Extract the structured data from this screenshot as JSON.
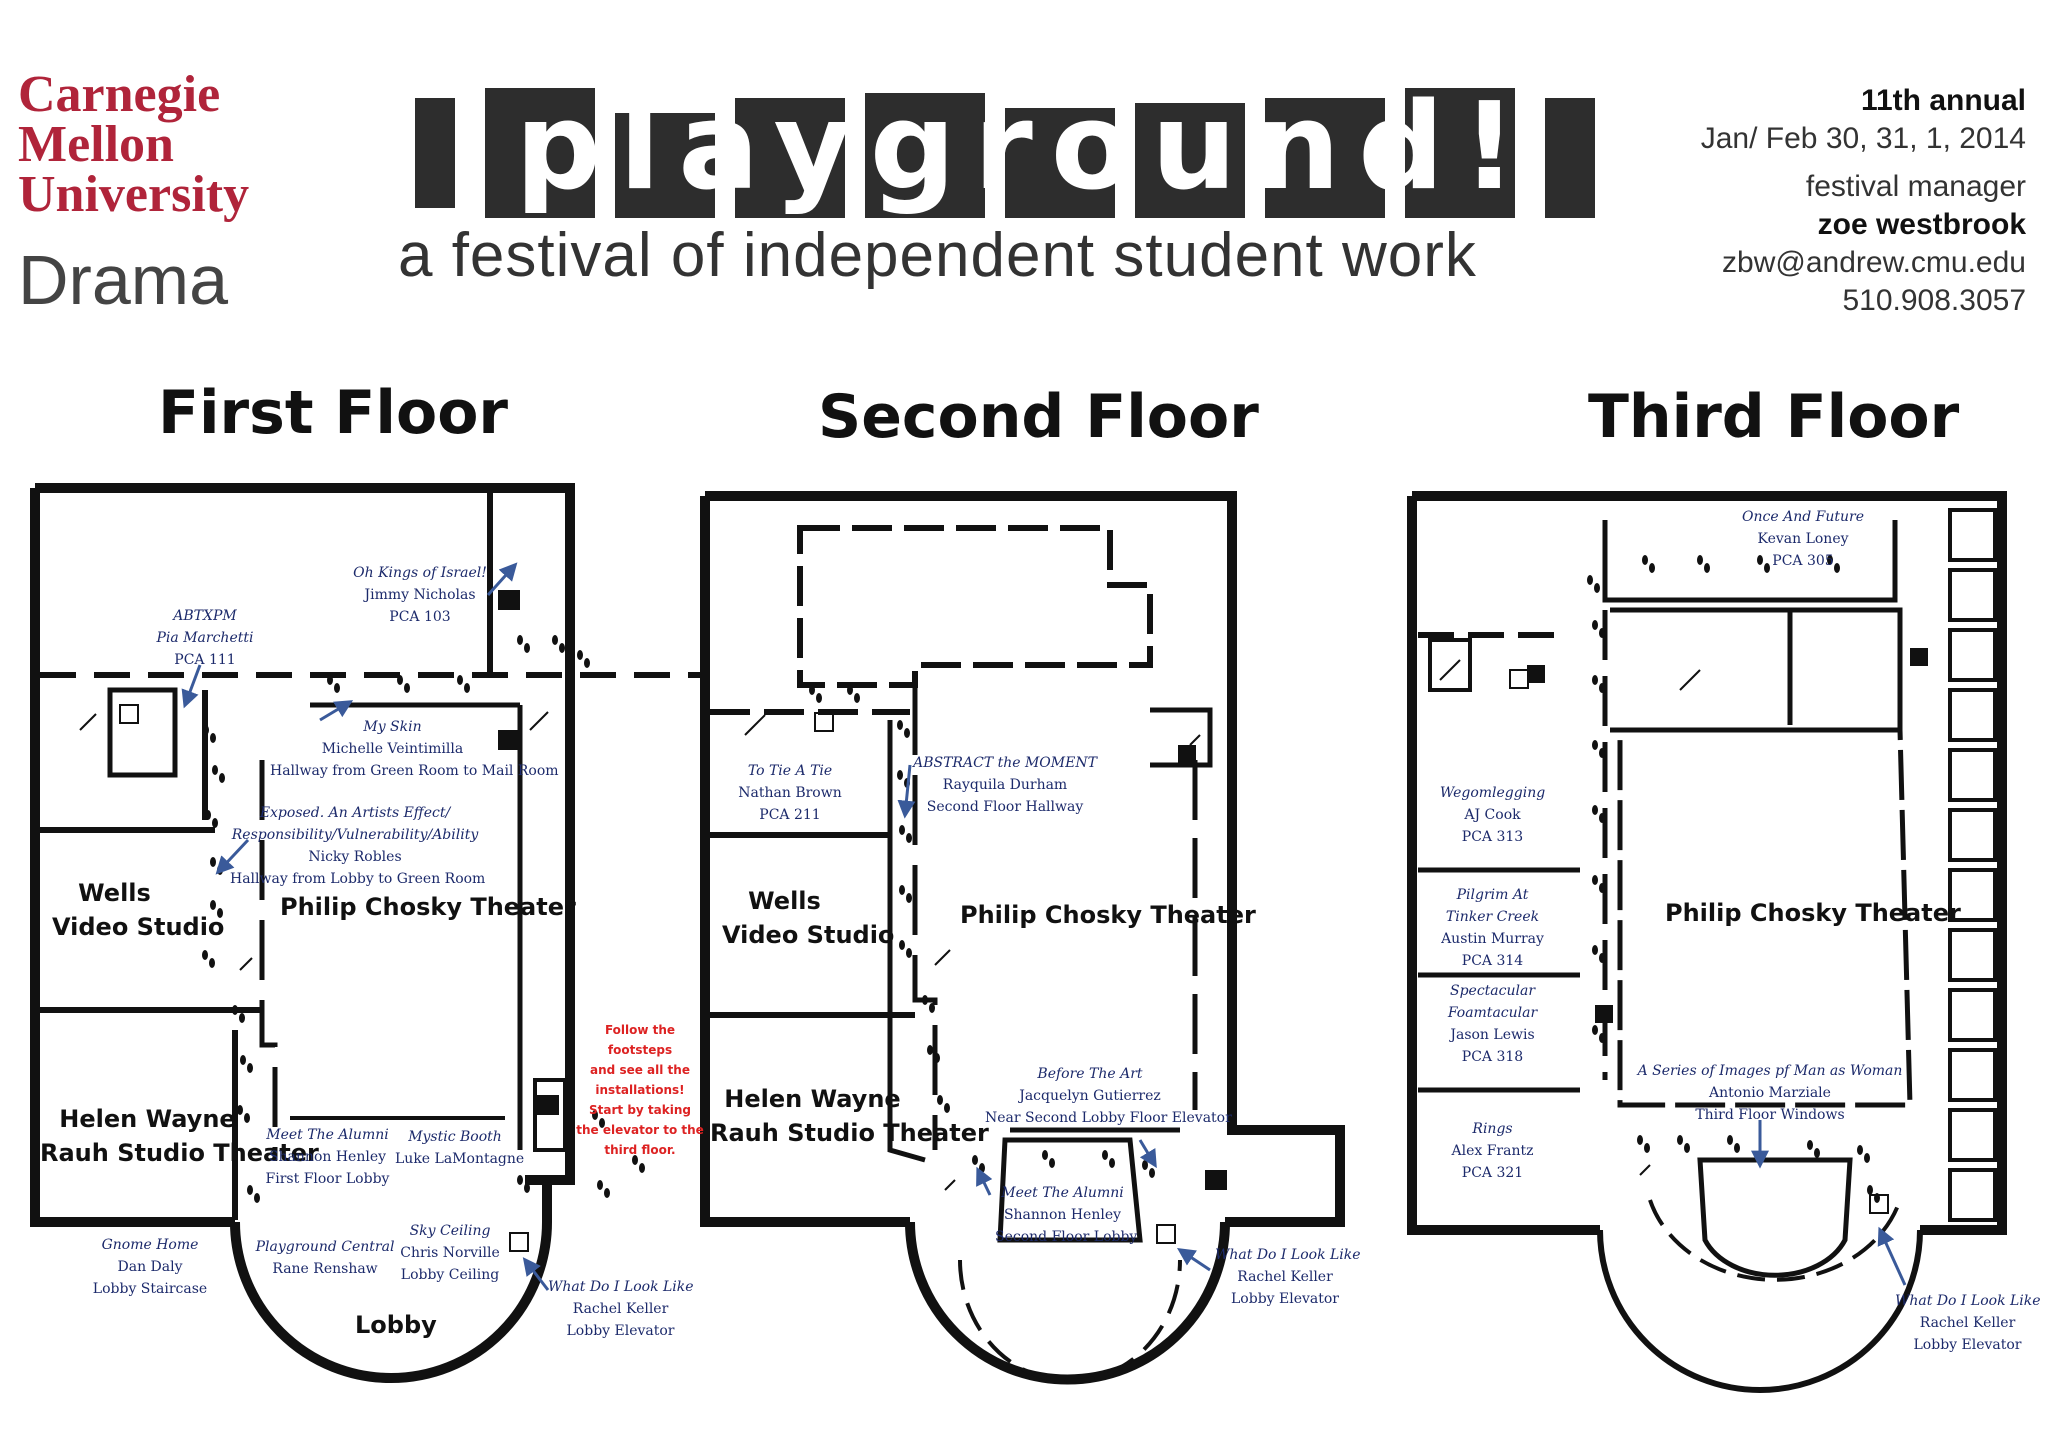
{
  "header": {
    "university_lines": [
      "Carnegie",
      "Mellon",
      "University"
    ],
    "department": "Drama",
    "festival_name": "playground!",
    "tagline": "a festival of independent student work",
    "edition": "11th annual",
    "dates": "Jan/ Feb 30, 31, 1, 2014",
    "manager_label": "festival manager",
    "manager_name": "zoe westbrook",
    "email": "zbw@andrew.cmu.edu",
    "phone": "510.908.3057"
  },
  "floors": {
    "first": {
      "title": "First Floor",
      "rooms": {
        "wells_1": "Wells",
        "wells_2": "Video Studio",
        "theater": "Philip Chosky Theater",
        "rauh_1": "Helen Wayne",
        "rauh_2": "Rauh Studio Theater",
        "lobby": "Lobby"
      },
      "installations": [
        {
          "title": "Oh Kings of Israel!",
          "artist": "Jimmy Nicholas",
          "location": "PCA 103"
        },
        {
          "title": "ABTXPM",
          "artist": "Pia Marchetti",
          "location": "PCA 111"
        },
        {
          "title": "My Skin",
          "artist": "Michelle Veintimilla",
          "location": "Hallway from Green Room to Mail Room"
        },
        {
          "title": "Exposed. An Artists Effect/",
          "title2": "Responsibility/Vulnerability/Ability",
          "artist": "Nicky Robles",
          "location": "Hallway from Lobby to Green Room"
        },
        {
          "title": "Meet The Alumni",
          "artist": "Shannon Henley",
          "location": "First Floor Lobby"
        },
        {
          "title": "Mystic Booth",
          "artist": "Luke LaMontagne",
          "location": ""
        },
        {
          "title": "Gnome Home",
          "artist": "Dan Daly",
          "location": "Lobby Staircase"
        },
        {
          "title": "Playground Central",
          "artist": "Rane Renshaw",
          "location": ""
        },
        {
          "title": "Sky Ceiling",
          "artist": "Chris Norville",
          "location": "Lobby Ceiling"
        },
        {
          "title": "What Do I Look Like",
          "artist": "Rachel Keller",
          "location": "Lobby Elevator"
        }
      ],
      "note": [
        "Follow the footsteps",
        "and see all the",
        "installations!",
        "Start by taking",
        "the elevator to the",
        "third floor."
      ]
    },
    "second": {
      "title": "Second Floor",
      "rooms": {
        "wells_1": "Wells",
        "wells_2": "Video Studio",
        "theater": "Philip Chosky Theater",
        "rauh_1": "Helen Wayne",
        "rauh_2": "Rauh Studio Theater"
      },
      "installations": [
        {
          "title": "To Tie A Tie",
          "artist": "Nathan Brown",
          "location": "PCA 211"
        },
        {
          "title": "ABSTRACT the MOMENT",
          "artist": "Rayquila Durham",
          "location": "Second Floor Hallway"
        },
        {
          "title": "Before The Art",
          "artist": "Jacquelyn Gutierrez",
          "location": "Near Second Lobby Floor Elevator"
        },
        {
          "title": "Meet The Alumni",
          "artist": "Shannon Henley",
          "location": "Second Floor Lobby"
        },
        {
          "title": "What Do I Look Like",
          "artist": "Rachel Keller",
          "location": "Lobby Elevator"
        }
      ]
    },
    "third": {
      "title": "Third Floor",
      "rooms": {
        "theater": "Philip Chosky Theater"
      },
      "installations": [
        {
          "title": "Once And Future",
          "artist": "Kevan Loney",
          "location": "PCA 305"
        },
        {
          "title": "Wegomlegging",
          "artist": "AJ Cook",
          "location": "PCA 313"
        },
        {
          "title": "Pilgrim At",
          "title2": "Tinker Creek",
          "artist": "Austin Murray",
          "location": "PCA 314"
        },
        {
          "title": "Spectacular",
          "title2": "Foamtacular",
          "artist": "Jason Lewis",
          "location": "PCA 318"
        },
        {
          "title": "Rings",
          "artist": "Alex Frantz",
          "location": "PCA 321"
        },
        {
          "title": "A Series of Images pf Man as Woman",
          "artist": "Antonio Marziale",
          "location": "Third Floor Windows"
        },
        {
          "title": "What Do I Look Like",
          "artist": "Rachel Keller",
          "location": "Lobby Elevator"
        }
      ]
    }
  },
  "colors": {
    "cmu_red": "#b0243a",
    "label_blue": "#1c2a6b",
    "arrow_blue": "#3a5a9a",
    "note_red": "#dd2222",
    "wall": "#111111"
  },
  "icons": [
    "restroom-icon",
    "elevator-icon",
    "stairs-icon",
    "footsteps-icon",
    "arrow-icon"
  ]
}
